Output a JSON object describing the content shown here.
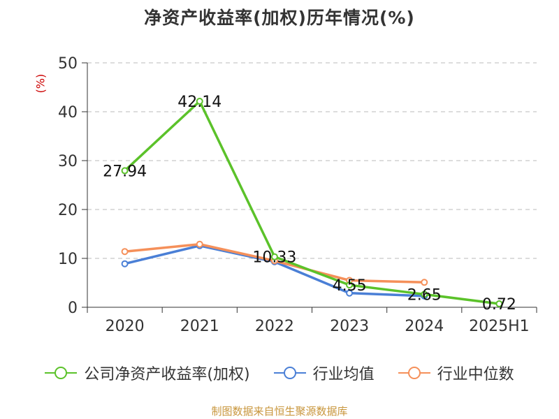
{
  "chart_data": {
    "type": "line",
    "title": "净资产收益率(加权)历年情况(%)",
    "ylabel": "(%)",
    "categories": [
      "2020",
      "2021",
      "2022",
      "2023",
      "2024",
      "2025H1"
    ],
    "ylim": [
      0,
      50
    ],
    "yticks": [
      0,
      10,
      20,
      30,
      40,
      50
    ],
    "grid": true,
    "legend_position": "bottom",
    "series": [
      {
        "name": "公司净资产收益率(加权)",
        "color": "#5bc22a",
        "values": [
          27.94,
          42.14,
          10.33,
          4.55,
          2.65,
          0.72
        ],
        "labels": [
          "27.94",
          "42.14",
          "10.33",
          "4.55",
          "2.65",
          "0.72"
        ]
      },
      {
        "name": "行业均值",
        "color": "#4a7fd6",
        "values": [
          8.9,
          12.6,
          9.3,
          2.9,
          2.3,
          null
        ]
      },
      {
        "name": "行业中位数",
        "color": "#f5905a",
        "values": [
          11.4,
          12.9,
          9.5,
          5.5,
          5.1,
          null
        ]
      }
    ]
  },
  "source": "制图数据来自恒生聚源数据库"
}
